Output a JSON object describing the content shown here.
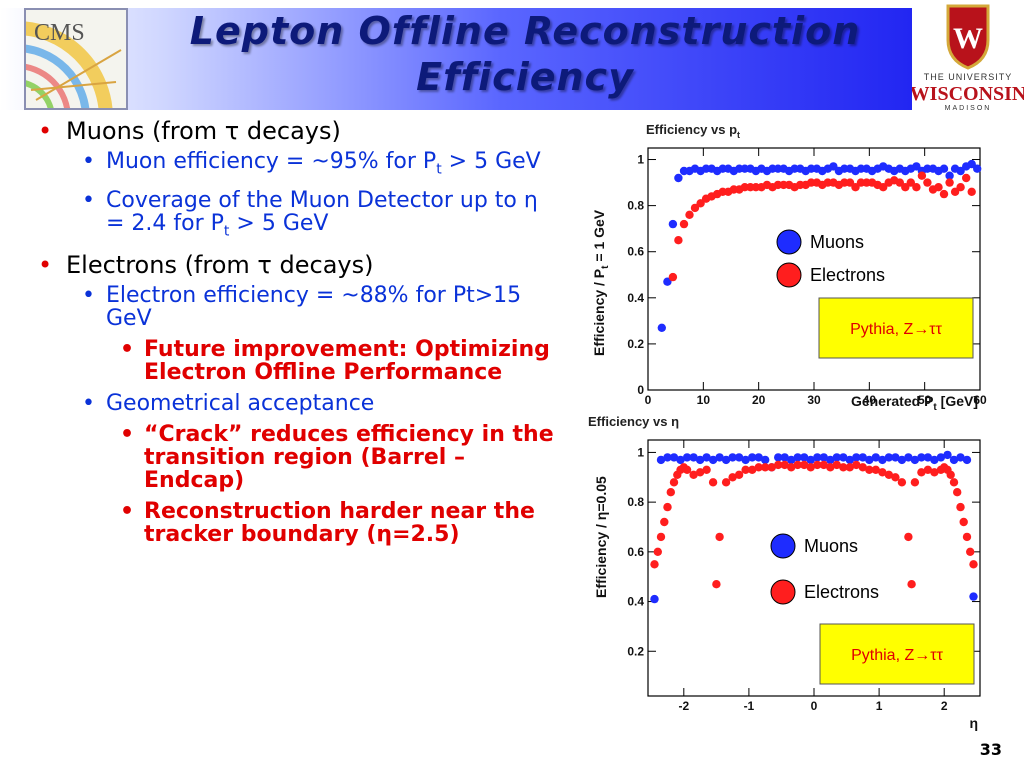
{
  "slide": {
    "title_line1": "Lepton Offline Reconstruction",
    "title_line2": "Efficiency",
    "page_number": "33"
  },
  "logos": {
    "cms_text": "CMS",
    "wisconsin_line1": "THE UNIVERSITY",
    "wisconsin_line2": "WISCONSIN",
    "wisconsin_line3": "MADISON",
    "wisconsin_shield_letter": "W"
  },
  "bullets": {
    "muons_heading": "Muons (from τ decays)",
    "muon_eff_a": "Muon efficiency = ~95% for P",
    "muon_eff_sub": "t",
    "muon_eff_b": " > 5 GeV",
    "coverage_a": "Coverage of the Muon Detector up to η = 2.4 for P",
    "coverage_sub": "t",
    "coverage_b": " > 5 GeV",
    "electrons_heading": "Electrons (from τ decays)",
    "electron_eff": "Electron efficiency = ~88% for Pt>15 GeV",
    "future": "Future improvement: Optimizing Electron Offline Performance",
    "geometrical": "Geometrical acceptance",
    "crack": "“Crack” reduces efficiency in the transition region (Barrel – Endcap)",
    "tracker": "Reconstruction harder near the tracker boundary (η=2.5)"
  },
  "colors": {
    "muon": "#1e2cff",
    "electron": "#ff1e1e",
    "note_bg": "#ffff00"
  },
  "chart_data": [
    {
      "type": "scatter",
      "title": "Efficiency vs p",
      "title_sub": "t",
      "xlabel": "Generated P",
      "xlabel_sub": "t",
      "xlabel_unit": " [GeV]",
      "ylabel": "Efficiency /  P",
      "ylabel_sub": "t",
      "ylabel_tail": " = 1 GeV",
      "xlim": [
        0,
        60
      ],
      "ylim": [
        0,
        1.05
      ],
      "xticks": [
        0,
        10,
        20,
        30,
        40,
        50,
        60
      ],
      "yticks": [
        0,
        0.2,
        0.4,
        0.6,
        0.8,
        1
      ],
      "ytick_labels": [
        "0",
        "0.2",
        "0.4",
        "0.6",
        "0.8",
        "1"
      ],
      "legend": [
        "Muons",
        "Electrons"
      ],
      "note": "Pythia, Z→ττ",
      "series": [
        {
          "name": "Muons",
          "x": [
            2.5,
            3.5,
            4.5,
            5.5,
            6.5,
            7.5,
            8.5,
            9.5,
            10.5,
            11.5,
            12.5,
            13.5,
            14.5,
            15.5,
            16.5,
            17.5,
            18.5,
            19.5,
            20.5,
            21.5,
            22.5,
            23.5,
            24.5,
            25.5,
            26.5,
            27.5,
            28.5,
            29.5,
            30.5,
            31.5,
            32.5,
            33.5,
            34.5,
            35.5,
            36.5,
            37.5,
            38.5,
            39.5,
            40.5,
            41.5,
            42.5,
            43.5,
            44.5,
            45.5,
            46.5,
            47.5,
            48.5,
            49.5,
            50.5,
            51.5,
            52.5,
            53.5,
            54.5,
            55.5,
            56.5,
            57.5,
            58.5,
            59.5
          ],
          "y": [
            0.27,
            0.47,
            0.72,
            0.92,
            0.95,
            0.95,
            0.96,
            0.95,
            0.96,
            0.96,
            0.95,
            0.96,
            0.96,
            0.95,
            0.96,
            0.96,
            0.96,
            0.95,
            0.96,
            0.95,
            0.96,
            0.96,
            0.96,
            0.95,
            0.96,
            0.96,
            0.95,
            0.96,
            0.96,
            0.95,
            0.96,
            0.97,
            0.95,
            0.96,
            0.96,
            0.95,
            0.96,
            0.96,
            0.95,
            0.96,
            0.97,
            0.96,
            0.95,
            0.96,
            0.95,
            0.96,
            0.97,
            0.95,
            0.96,
            0.96,
            0.95,
            0.96,
            0.93,
            0.96,
            0.95,
            0.97,
            0.98,
            0.96
          ]
        },
        {
          "name": "Electrons",
          "x": [
            4.5,
            5.5,
            6.5,
            7.5,
            8.5,
            9.5,
            10.5,
            11.5,
            12.5,
            13.5,
            14.5,
            15.5,
            16.5,
            17.5,
            18.5,
            19.5,
            20.5,
            21.5,
            22.5,
            23.5,
            24.5,
            25.5,
            26.5,
            27.5,
            28.5,
            29.5,
            30.5,
            31.5,
            32.5,
            33.5,
            34.5,
            35.5,
            36.5,
            37.5,
            38.5,
            39.5,
            40.5,
            41.5,
            42.5,
            43.5,
            44.5,
            45.5,
            46.5,
            47.5,
            48.5,
            49.5,
            50.5,
            51.5,
            52.5,
            53.5,
            54.5,
            55.5,
            56.5,
            57.5,
            58.5
          ],
          "y": [
            0.49,
            0.65,
            0.72,
            0.76,
            0.79,
            0.81,
            0.83,
            0.84,
            0.85,
            0.86,
            0.86,
            0.87,
            0.87,
            0.88,
            0.88,
            0.88,
            0.88,
            0.89,
            0.88,
            0.89,
            0.89,
            0.89,
            0.88,
            0.89,
            0.89,
            0.9,
            0.9,
            0.89,
            0.9,
            0.9,
            0.89,
            0.9,
            0.9,
            0.88,
            0.9,
            0.9,
            0.9,
            0.89,
            0.88,
            0.9,
            0.91,
            0.9,
            0.88,
            0.9,
            0.88,
            0.93,
            0.9,
            0.87,
            0.88,
            0.85,
            0.9,
            0.86,
            0.88,
            0.92,
            0.86
          ]
        }
      ]
    },
    {
      "type": "scatter",
      "title": "Efficiency vs η",
      "xlabel": "η",
      "ylabel": "Efficiency / η=0.05",
      "xlim": [
        -2.55,
        2.55
      ],
      "ylim": [
        0.02,
        1.05
      ],
      "xticks": [
        -2,
        -1,
        0,
        1,
        2
      ],
      "yticks": [
        0.2,
        0.4,
        0.6,
        0.8,
        1
      ],
      "ytick_labels": [
        "0.2",
        "0.4",
        "0.6",
        "0.8",
        "1"
      ],
      "legend": [
        "Muons",
        "Electrons"
      ],
      "note": "Pythia, Z→ττ",
      "series": [
        {
          "name": "Muons",
          "x": [
            -2.45,
            -2.35,
            -2.25,
            -2.15,
            -2.05,
            -1.95,
            -1.85,
            -1.75,
            -1.65,
            -1.55,
            -1.45,
            -1.35,
            -1.25,
            -1.15,
            -1.05,
            -0.95,
            -0.85,
            -0.75,
            -0.65,
            -0.55,
            -0.45,
            -0.35,
            -0.25,
            -0.15,
            -0.05,
            0.05,
            0.15,
            0.25,
            0.35,
            0.45,
            0.55,
            0.65,
            0.75,
            0.85,
            0.95,
            1.05,
            1.15,
            1.25,
            1.35,
            1.45,
            1.55,
            1.65,
            1.75,
            1.85,
            1.95,
            2.05,
            2.15,
            2.25,
            2.35,
            2.45
          ],
          "y": [
            0.41,
            0.97,
            0.98,
            0.98,
            0.97,
            0.98,
            0.98,
            0.97,
            0.98,
            0.97,
            0.98,
            0.97,
            0.98,
            0.98,
            0.97,
            0.98,
            0.98,
            0.97,
            0.94,
            0.98,
            0.98,
            0.97,
            0.98,
            0.98,
            0.97,
            0.98,
            0.98,
            0.97,
            0.98,
            0.98,
            0.97,
            0.98,
            0.98,
            0.97,
            0.98,
            0.97,
            0.98,
            0.98,
            0.97,
            0.98,
            0.97,
            0.98,
            0.98,
            0.97,
            0.98,
            0.99,
            0.97,
            0.98,
            0.97,
            0.42
          ]
        },
        {
          "name": "Electrons",
          "x": [
            -2.45,
            -2.4,
            -2.35,
            -2.3,
            -2.25,
            -2.2,
            -2.15,
            -2.1,
            -2.05,
            -2.0,
            -1.95,
            -1.85,
            -1.75,
            -1.65,
            -1.55,
            -1.5,
            -1.45,
            -1.35,
            -1.25,
            -1.15,
            -1.05,
            -0.95,
            -0.85,
            -0.75,
            -0.65,
            -0.55,
            -0.45,
            -0.35,
            -0.25,
            -0.15,
            -0.05,
            0.05,
            0.15,
            0.25,
            0.35,
            0.45,
            0.55,
            0.65,
            0.75,
            0.85,
            0.95,
            1.05,
            1.15,
            1.25,
            1.35,
            1.45,
            1.5,
            1.55,
            1.65,
            1.75,
            1.85,
            1.95,
            2.0,
            2.05,
            2.1,
            2.15,
            2.2,
            2.25,
            2.3,
            2.35,
            2.4,
            2.45
          ],
          "y": [
            0.55,
            0.6,
            0.66,
            0.72,
            0.78,
            0.84,
            0.88,
            0.91,
            0.93,
            0.94,
            0.93,
            0.91,
            0.92,
            0.93,
            0.88,
            0.47,
            0.66,
            0.88,
            0.9,
            0.91,
            0.93,
            0.93,
            0.94,
            0.94,
            0.94,
            0.95,
            0.95,
            0.94,
            0.95,
            0.95,
            0.94,
            0.95,
            0.95,
            0.94,
            0.95,
            0.94,
            0.94,
            0.95,
            0.94,
            0.93,
            0.93,
            0.92,
            0.91,
            0.9,
            0.88,
            0.66,
            0.47,
            0.88,
            0.92,
            0.93,
            0.92,
            0.93,
            0.94,
            0.93,
            0.91,
            0.88,
            0.84,
            0.78,
            0.72,
            0.66,
            0.6,
            0.55
          ]
        }
      ]
    }
  ]
}
